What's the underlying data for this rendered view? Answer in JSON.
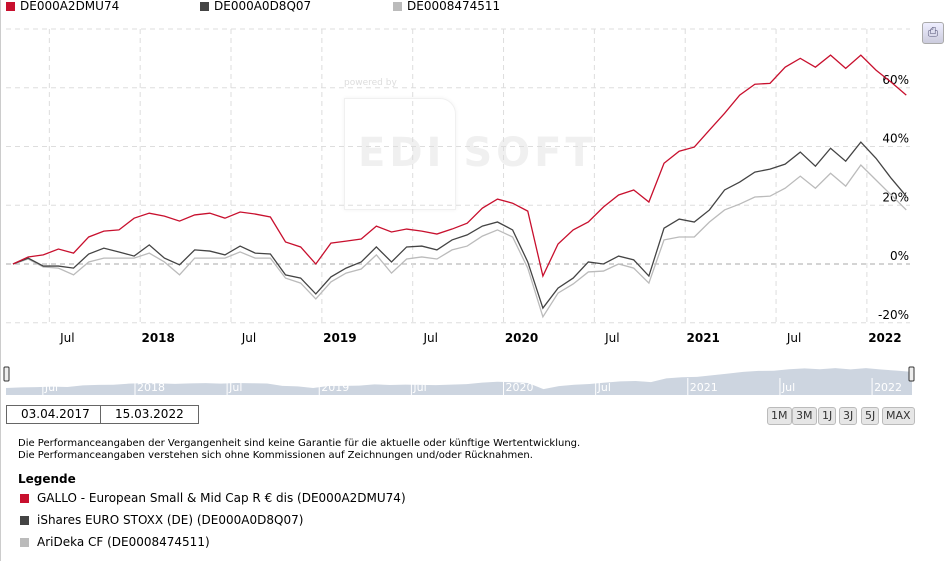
{
  "legend_top": [
    {
      "label": "DE000A2DMU74",
      "color": "#c8102e"
    },
    {
      "label": "DE000A0D8Q07",
      "color": "#444444"
    },
    {
      "label": "DE0008474511",
      "color": "#bbbbbb"
    }
  ],
  "watermark": {
    "powered": "powered by",
    "brand": "EDI SOFT"
  },
  "chart_data": {
    "type": "line",
    "title": "",
    "xlabel": "",
    "ylabel": "",
    "ylim": [
      -20,
      80
    ],
    "yticks": [
      {
        "v": 60,
        "label": "60%"
      },
      {
        "v": 40,
        "label": "40%"
      },
      {
        "v": 20,
        "label": "20%"
      },
      {
        "v": 0,
        "label": "0%"
      },
      {
        "v": -20,
        "label": "-20%"
      }
    ],
    "x": "monthly, Apr 2017 to Mar 2022 (index 0..59)",
    "xticks": [
      {
        "m": 3,
        "label": "Jul",
        "bold": false
      },
      {
        "m": 9,
        "label": "2018",
        "bold": true
      },
      {
        "m": 15,
        "label": "Jul",
        "bold": false
      },
      {
        "m": 21,
        "label": "2019",
        "bold": true
      },
      {
        "m": 27,
        "label": "Jul",
        "bold": false
      },
      {
        "m": 33,
        "label": "2020",
        "bold": true
      },
      {
        "m": 39,
        "label": "Jul",
        "bold": false
      },
      {
        "m": 45,
        "label": "2021",
        "bold": true
      },
      {
        "m": 51,
        "label": "Jul",
        "bold": false
      },
      {
        "m": 57,
        "label": "2022",
        "bold": true
      }
    ],
    "grid": true,
    "series": [
      {
        "name": "DE000A2DMU74",
        "color": "#c8102e",
        "values": [
          0,
          2.4,
          3.1,
          5.1,
          3.7,
          9.2,
          11.2,
          11.6,
          15.6,
          17.3,
          16.3,
          14.6,
          16.7,
          17.3,
          15.6,
          17.7,
          17.0,
          16.0,
          7.5,
          5.8,
          0,
          7.1,
          7.8,
          8.5,
          12.9,
          10.9,
          11.9,
          11.2,
          10.2,
          11.9,
          13.9,
          19.0,
          22.1,
          20.7,
          18.0,
          -4.1,
          6.8,
          11.6,
          14.3,
          19.4,
          23.5,
          25.2,
          21.1,
          34.3,
          38.4,
          39.8,
          45.6,
          51.3,
          57.5,
          61.2,
          61.5,
          67.0,
          70.0,
          67.0,
          71.1,
          66.6,
          71.1,
          66.0,
          61.9,
          57.5
        ]
      },
      {
        "name": "DE000A0D8Q07",
        "color": "#444444",
        "values": [
          0,
          2.0,
          -0.7,
          -0.7,
          -1.4,
          3.4,
          5.4,
          4.1,
          2.7,
          6.5,
          2.0,
          -0.3,
          4.8,
          4.4,
          3.1,
          6.1,
          3.7,
          3.4,
          -3.7,
          -4.8,
          -10.2,
          -4.4,
          -1.4,
          0.7,
          5.8,
          0.7,
          5.8,
          6.1,
          4.8,
          8.2,
          9.9,
          12.9,
          14.3,
          11.6,
          0.7,
          -15.0,
          -8.2,
          -4.8,
          0.7,
          0,
          2.7,
          1.4,
          -4.1,
          12.2,
          15.3,
          14.3,
          18.4,
          25.2,
          27.9,
          31.3,
          32.3,
          34.0,
          38.1,
          33.3,
          39.4,
          35.0,
          41.5,
          36.0,
          29.2,
          23.1
        ]
      },
      {
        "name": "DE0008474511",
        "color": "#bbbbbb",
        "values": [
          0,
          1.7,
          -1.0,
          -1.4,
          -3.7,
          0.7,
          2.0,
          2.0,
          2.0,
          3.7,
          0.7,
          -3.7,
          2.0,
          2.0,
          2.0,
          4.1,
          2.0,
          2.0,
          -4.8,
          -6.5,
          -11.9,
          -6.1,
          -3.1,
          -1.7,
          3.1,
          -3.1,
          1.7,
          2.4,
          1.7,
          4.8,
          6.1,
          9.5,
          11.6,
          9.2,
          -1.4,
          -18.0,
          -9.9,
          -6.8,
          -2.7,
          -2.4,
          0,
          -1.4,
          -6.5,
          8.2,
          9.2,
          9.2,
          14.3,
          18.4,
          20.4,
          22.8,
          23.1,
          25.8,
          29.9,
          25.8,
          30.9,
          26.5,
          33.7,
          28.6,
          23.5,
          18.4
        ]
      }
    ]
  },
  "range": {
    "from": "03.04.2017",
    "to": "15.03.2022",
    "buttons": [
      "1M",
      "3M",
      "1J",
      "3J",
      "5J",
      "MAX"
    ]
  },
  "disclaimer": [
    "Die Performanceangaben der Vergangenheit sind keine Garantie für die aktuelle oder künftige Wertentwicklung.",
    "Die Performanceangaben verstehen sich ohne Kommissionen auf Zeichnungen und/oder Rücknahmen."
  ],
  "legend": {
    "title": "Legende",
    "items": [
      {
        "label": "GALLO - European Small & Mid Cap R € dis  (DE000A2DMU74)",
        "color": "#c8102e"
      },
      {
        "label": "iShares EURO STOXX (DE)  (DE000A0D8Q07)",
        "color": "#444444"
      },
      {
        "label": "AriDeka CF  (DE0008474511)",
        "color": "#bbbbbb"
      }
    ]
  },
  "print_icon": "printer-icon"
}
